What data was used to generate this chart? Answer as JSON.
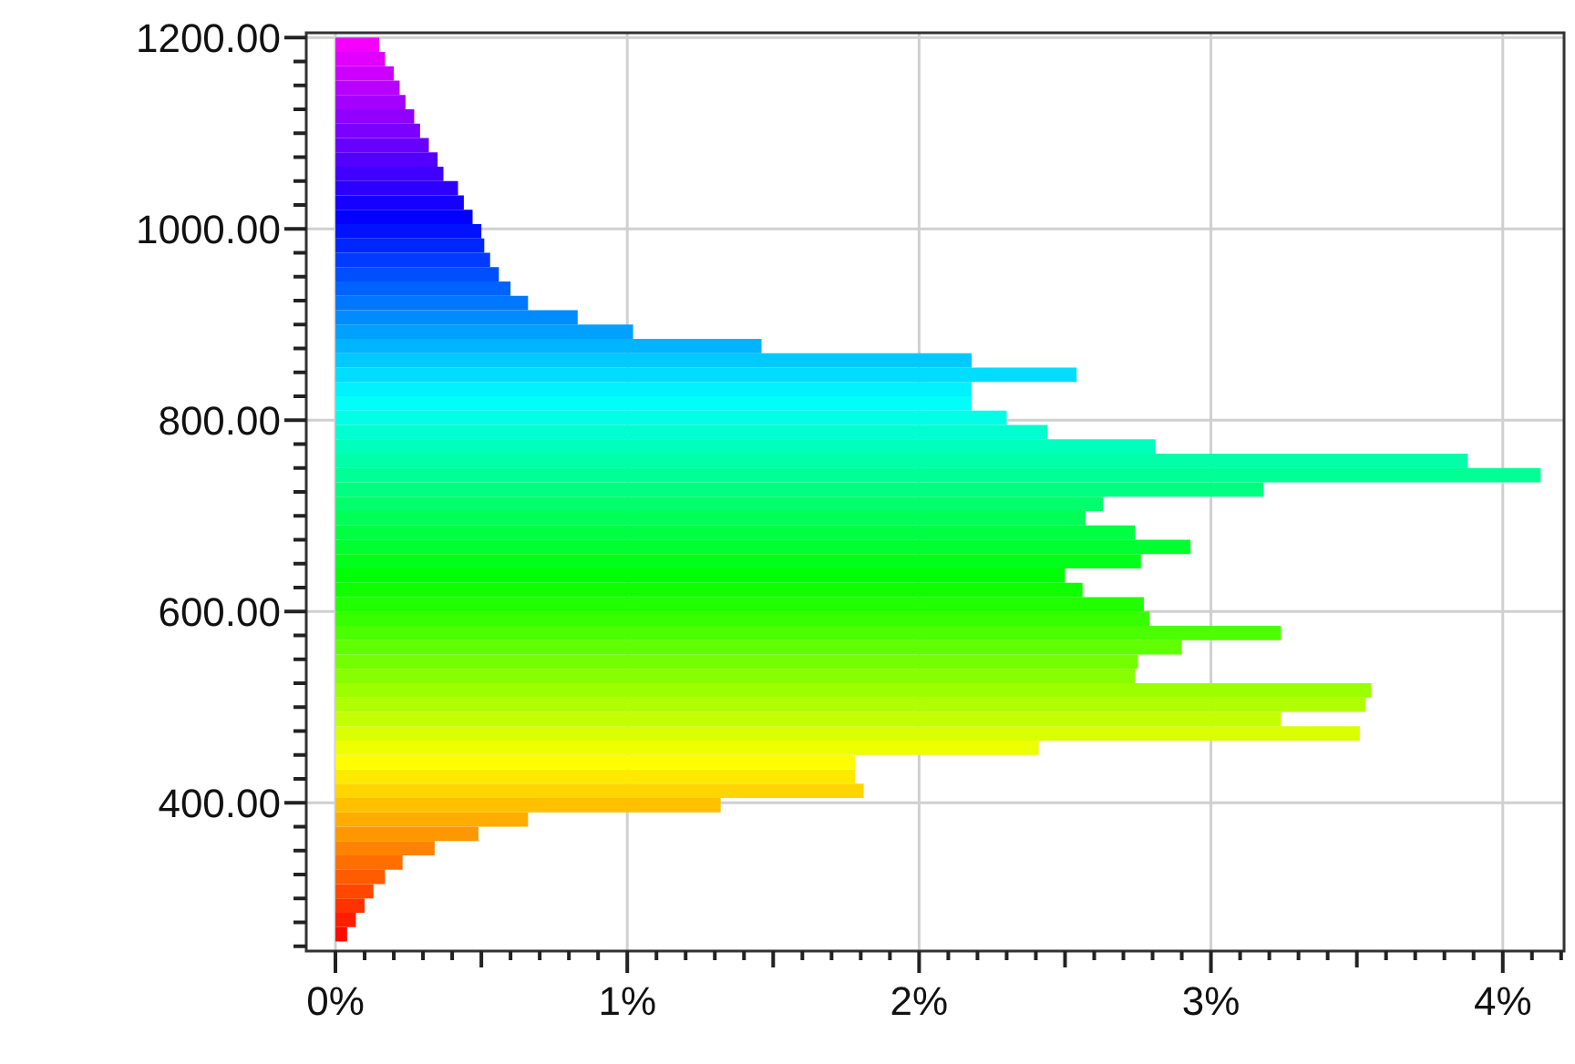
{
  "chart_data": {
    "type": "histogram",
    "orientation": "horizontal",
    "bins": [
      255,
      270,
      285,
      300,
      315,
      330,
      345,
      360,
      375,
      390,
      405,
      420,
      435,
      450,
      465,
      480,
      495,
      510,
      525,
      540,
      555,
      570,
      585,
      600,
      615,
      630,
      645,
      660,
      675,
      690,
      705,
      720,
      735,
      750,
      765,
      780,
      795,
      810,
      825,
      840,
      855,
      870,
      885,
      900,
      915,
      930,
      945,
      960,
      975,
      990,
      1005,
      1020,
      1035,
      1050,
      1065,
      1080,
      1095,
      1110,
      1125,
      1140,
      1155,
      1170,
      1185,
      1200
    ],
    "values": [
      0.04,
      0.07,
      0.1,
      0.13,
      0.17,
      0.23,
      0.34,
      0.49,
      0.66,
      1.32,
      1.81,
      1.78,
      1.78,
      2.41,
      3.51,
      3.24,
      3.53,
      3.55,
      2.74,
      2.75,
      2.9,
      3.24,
      2.79,
      2.77,
      2.56,
      2.5,
      2.76,
      2.93,
      2.74,
      2.57,
      2.63,
      3.18,
      4.13,
      3.88,
      2.81,
      2.44,
      2.3,
      2.18,
      2.18,
      2.54,
      2.18,
      1.46,
      1.02,
      0.83,
      0.66,
      0.6,
      0.56,
      0.53,
      0.51,
      0.5,
      0.47,
      0.44,
      0.42,
      0.37,
      0.35,
      0.32,
      0.29,
      0.27,
      0.24,
      0.22,
      0.2,
      0.17,
      0.15
    ],
    "colors": [
      "#ff0a00",
      "#ff1e00",
      "#ff3300",
      "#ff4700",
      "#ff5b00",
      "#ff6f00",
      "#ff8300",
      "#ff9800",
      "#ffac00",
      "#ffc000",
      "#ffd500",
      "#ffe900",
      "#fffd00",
      "#edff00",
      "#d9ff00",
      "#c4ff00",
      "#b0ff00",
      "#9cff00",
      "#88ff00",
      "#74ff00",
      "#5fff00",
      "#4bff00",
      "#37ff00",
      "#22ff00",
      "#0eff00",
      "#00ff06",
      "#00ff1a",
      "#00ff2f",
      "#00ff43",
      "#00ff57",
      "#00ff6b",
      "#00ff80",
      "#00ff94",
      "#00ffa8",
      "#00ffbc",
      "#00ffd0",
      "#00ffe5",
      "#00fff9",
      "#00f1ff",
      "#00ddff",
      "#00c9ff",
      "#00b4ff",
      "#00a0ff",
      "#008cff",
      "#0077ff",
      "#0063ff",
      "#004fff",
      "#003bff",
      "#0026ff",
      "#0012ff",
      "#0200ff",
      "#1600ff",
      "#2b00ff",
      "#3f00ff",
      "#5300ff",
      "#6700ff",
      "#7b00ff",
      "#9000ff",
      "#a400ff",
      "#b800ff",
      "#cc00ff",
      "#e100ff",
      "#f500ff"
    ],
    "xlim": [
      -0.1,
      4.21
    ],
    "xticks": [
      {
        "value": 0,
        "label": "0%"
      },
      {
        "value": 0.1,
        "label": null
      },
      {
        "value": 0.2,
        "label": null
      },
      {
        "value": 0.3,
        "label": null
      },
      {
        "value": 0.4,
        "label": null
      },
      {
        "value": 0.5,
        "label": null
      },
      {
        "value": 0.6,
        "label": null
      },
      {
        "value": 0.7,
        "label": null
      },
      {
        "value": 0.8,
        "label": null
      },
      {
        "value": 0.9,
        "label": null
      },
      {
        "value": 1,
        "label": "1%"
      },
      {
        "value": 1.1,
        "label": null
      },
      {
        "value": 1.2,
        "label": null
      },
      {
        "value": 1.3,
        "label": null
      },
      {
        "value": 1.4,
        "label": null
      },
      {
        "value": 1.5,
        "label": null
      },
      {
        "value": 1.6,
        "label": null
      },
      {
        "value": 1.7,
        "label": null
      },
      {
        "value": 1.8,
        "label": null
      },
      {
        "value": 1.9,
        "label": null
      },
      {
        "value": 2,
        "label": "2%"
      },
      {
        "value": 2.1,
        "label": null
      },
      {
        "value": 2.2,
        "label": null
      },
      {
        "value": 2.3,
        "label": null
      },
      {
        "value": 2.4,
        "label": null
      },
      {
        "value": 2.5,
        "label": null
      },
      {
        "value": 2.6,
        "label": null
      },
      {
        "value": 2.7,
        "label": null
      },
      {
        "value": 2.8,
        "label": null
      },
      {
        "value": 2.9,
        "label": null
      },
      {
        "value": 3,
        "label": "3%"
      },
      {
        "value": 3.1,
        "label": null
      },
      {
        "value": 3.2,
        "label": null
      },
      {
        "value": 3.3,
        "label": null
      },
      {
        "value": 3.4,
        "label": null
      },
      {
        "value": 3.5,
        "label": null
      },
      {
        "value": 3.6,
        "label": null
      },
      {
        "value": 3.7,
        "label": null
      },
      {
        "value": 3.8,
        "label": null
      },
      {
        "value": 3.9,
        "label": null
      },
      {
        "value": 4,
        "label": "4%"
      },
      {
        "value": 4.1,
        "label": null
      },
      {
        "value": 4.2,
        "label": null
      }
    ],
    "ylim": [
      245,
      1205
    ],
    "yticks": [
      {
        "value": 250,
        "label": null
      },
      {
        "value": 275,
        "label": null
      },
      {
        "value": 300,
        "label": null
      },
      {
        "value": 325,
        "label": null
      },
      {
        "value": 350,
        "label": null
      },
      {
        "value": 375,
        "label": null
      },
      {
        "value": 400,
        "label": "400.00"
      },
      {
        "value": 425,
        "label": null
      },
      {
        "value": 450,
        "label": null
      },
      {
        "value": 475,
        "label": null
      },
      {
        "value": 500,
        "label": null
      },
      {
        "value": 525,
        "label": null
      },
      {
        "value": 550,
        "label": null
      },
      {
        "value": 575,
        "label": null
      },
      {
        "value": 600,
        "label": "600.00"
      },
      {
        "value": 625,
        "label": null
      },
      {
        "value": 650,
        "label": null
      },
      {
        "value": 675,
        "label": null
      },
      {
        "value": 700,
        "label": null
      },
      {
        "value": 725,
        "label": null
      },
      {
        "value": 750,
        "label": null
      },
      {
        "value": 775,
        "label": null
      },
      {
        "value": 800,
        "label": "800.00"
      },
      {
        "value": 825,
        "label": null
      },
      {
        "value": 850,
        "label": null
      },
      {
        "value": 875,
        "label": null
      },
      {
        "value": 900,
        "label": null
      },
      {
        "value": 925,
        "label": null
      },
      {
        "value": 950,
        "label": null
      },
      {
        "value": 975,
        "label": null
      },
      {
        "value": 1000,
        "label": "1000.00"
      },
      {
        "value": 1025,
        "label": null
      },
      {
        "value": 1050,
        "label": null
      },
      {
        "value": 1075,
        "label": null
      },
      {
        "value": 1100,
        "label": null
      },
      {
        "value": 1125,
        "label": null
      },
      {
        "value": 1150,
        "label": null
      },
      {
        "value": 1175,
        "label": null
      },
      {
        "value": 1200,
        "label": "1200.00"
      }
    ],
    "grid": true
  }
}
